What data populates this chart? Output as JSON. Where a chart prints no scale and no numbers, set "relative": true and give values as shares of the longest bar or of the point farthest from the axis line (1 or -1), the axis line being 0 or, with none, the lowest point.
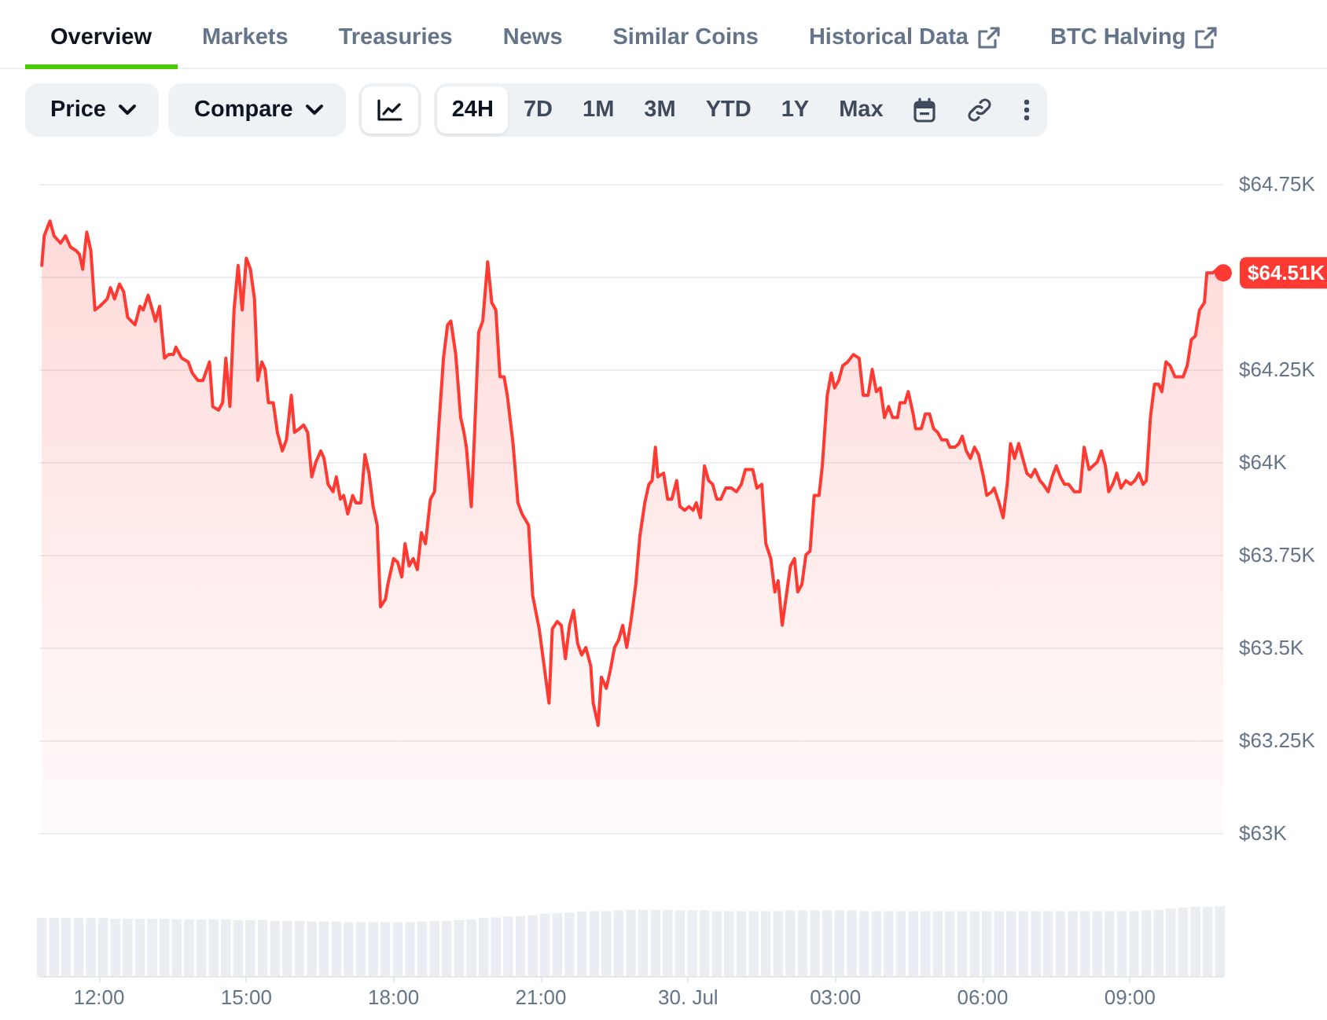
{
  "chart_data": [
    {
      "type": "area",
      "color": "#ff3a33",
      "xlim": [
        "--07-29T10:47",
        "--07-30T10:54"
      ],
      "ylim": [
        63,
        64.75
      ],
      "yticks": [
        {
          "value": 63,
          "label": "$63K"
        },
        {
          "value": 63.25,
          "label": "$63.25K"
        },
        {
          "value": 63.5,
          "label": "$63.5K"
        },
        {
          "value": 63.75,
          "label": "$63.75K"
        },
        {
          "value": 64,
          "label": "$64K"
        },
        {
          "value": 64.25,
          "label": "$64.25K"
        },
        {
          "value": 64.5,
          "label": null
        },
        {
          "value": 64.75,
          "label": "$64.75K"
        }
      ],
      "grid": "y",
      "tick_labels": "y",
      "annotations": [
        "Overview",
        "Markets",
        "Treasuries",
        "News",
        "Similar Coins",
        "Historical Data",
        "BTC Halving",
        "Price",
        "Compare",
        "24H",
        "7D",
        "1M",
        "3M",
        "YTD",
        "1Y",
        "Max",
        {
          "text": "$64.51K",
          "x": "--07-30T10:54",
          "y": 64.51
        }
      ],
      "x": [
        "--07-29T10:50",
        "--07-29T10:53",
        "--07-29T11:00",
        "--07-29T11:05",
        "--07-29T11:13",
        "--07-29T11:19",
        "--07-29T11:25",
        "--07-29T11:32",
        "--07-29T11:36",
        "--07-29T11:40",
        "--07-29T11:45",
        "--07-29T11:50",
        "--07-29T11:55",
        "--07-29T12:01",
        "--07-29T12:10",
        "--07-29T12:14",
        "--07-29T12:19",
        "--07-29T12:25",
        "--07-29T12:30",
        "--07-29T12:35",
        "--07-29T12:44",
        "--07-29T12:50",
        "--07-29T12:54",
        "--07-29T13:00",
        "--07-29T13:09",
        "--07-29T13:14",
        "--07-29T13:20",
        "--07-29T13:25",
        "--07-29T13:31",
        "--07-29T13:34",
        "--07-29T13:41",
        "--07-29T13:49",
        "--07-29T13:54",
        "--07-29T14:01",
        "--07-29T14:07",
        "--07-29T14:15",
        "--07-29T14:19",
        "--07-29T14:26",
        "--07-29T14:31",
        "--07-29T14:35",
        "--07-29T14:40",
        "--07-29T14:45",
        "--07-29T14:50",
        "--07-29T14:55",
        "--07-29T15:00",
        "--07-29T15:05",
        "--07-29T15:10",
        "--07-29T15:14",
        "--07-29T15:19",
        "--07-29T15:23",
        "--07-29T15:27",
        "--07-29T15:33",
        "--07-29T15:38",
        "--07-29T15:44",
        "--07-29T15:49",
        "--07-29T15:55",
        "--07-29T15:59",
        "--07-29T16:05",
        "--07-29T16:10",
        "--07-29T16:15",
        "--07-29T16:20",
        "--07-29T16:25",
        "--07-29T16:31",
        "--07-29T16:35",
        "--07-29T16:40",
        "--07-29T16:46",
        "--07-29T16:50",
        "--07-29T16:55",
        "--07-29T16:59",
        "--07-29T17:04",
        "--07-29T17:10",
        "--07-29T17:14",
        "--07-29T17:20",
        "--07-29T17:25",
        "--07-29T17:30",
        "--07-29T17:35",
        "--07-29T17:40",
        "--07-29T17:44",
        "--07-29T17:50",
        "--07-29T17:53",
        "--07-29T18:00",
        "--07-29T18:05",
        "--07-29T18:10",
        "--07-29T18:14",
        "--07-29T18:19",
        "--07-29T18:24",
        "--07-29T18:29",
        "--07-29T18:34",
        "--07-29T18:39",
        "--07-29T18:45",
        "--07-29T18:50",
        "--07-29T18:56",
        "--07-29T19:01",
        "--07-29T19:06",
        "--07-29T19:10",
        "--07-29T19:16",
        "--07-29T19:22",
        "--07-29T19:26",
        "--07-29T19:29",
        "--07-29T19:35",
        "--07-29T19:39",
        "--07-29T19:44",
        "--07-29T19:49",
        "--07-29T19:55",
        "--07-29T20:00",
        "--07-29T20:05",
        "--07-29T20:10",
        "--07-29T20:15",
        "--07-29T20:19",
        "--07-29T20:26",
        "--07-29T20:32",
        "--07-29T20:37",
        "--07-29T20:45",
        "--07-29T20:50",
        "--07-29T20:58",
        "--07-29T21:04",
        "--07-29T21:10",
        "--07-29T21:14",
        "--07-29T21:20",
        "--07-29T21:25",
        "--07-29T21:30",
        "--07-29T21:35",
        "--07-29T21:40",
        "--07-29T21:45",
        "--07-29T21:50",
        "--07-29T21:55",
        "--07-29T22:01",
        "--07-29T22:04",
        "--07-29T22:10",
        "--07-29T22:14",
        "--07-29T22:20",
        "--07-29T22:25",
        "--07-29T22:30",
        "--07-29T22:35",
        "--07-29T22:40",
        "--07-29T22:45",
        "--07-29T22:50",
        "--07-29T22:56",
        "--07-29T23:01",
        "--07-29T23:07",
        "--07-29T23:12",
        "--07-29T23:16",
        "--07-29T23:20",
        "--07-29T23:23",
        "--07-29T23:30",
        "--07-29T23:35",
        "--07-29T23:40",
        "--07-29T23:46",
        "--07-29T23:50",
        "--07-29T23:56",
        "--07-30T00:01",
        "--07-30T00:06",
        "--07-30T00:10",
        "--07-30T00:15",
        "--07-30T00:20",
        "--07-30T00:25",
        "--07-30T00:30",
        "--07-30T00:35",
        "--07-30T00:40",
        "--07-30T00:46",
        "--07-30T00:53",
        "--07-30T00:59",
        "--07-30T01:05",
        "--07-30T01:10",
        "--07-30T01:19",
        "--07-30T01:24",
        "--07-30T01:30",
        "--07-30T01:35",
        "--07-30T01:41",
        "--07-30T01:46",
        "--07-30T01:50",
        "--07-30T01:55",
        "--07-30T02:00",
        "--07-30T02:05",
        "--07-30T02:10",
        "--07-30T02:14",
        "--07-30T02:19",
        "--07-30T02:24",
        "--07-30T02:29",
        "--07-30T02:34",
        "--07-30T02:40",
        "--07-30T02:44",
        "--07-30T02:50",
        "--07-30T02:55",
        "--07-30T02:59",
        "--07-30T03:04",
        "--07-30T03:09",
        "--07-30T03:15",
        "--07-30T03:22",
        "--07-30T03:29",
        "--07-30T03:34",
        "--07-30T03:40",
        "--07-30T03:45",
        "--07-30T03:50",
        "--07-30T03:55",
        "--07-30T04:00",
        "--07-30T04:05",
        "--07-30T04:10",
        "--07-30T04:16",
        "--07-30T04:19",
        "--07-30T04:25",
        "--07-30T04:29",
        "--07-30T04:35",
        "--07-30T04:38",
        "--07-30T04:45",
        "--07-30T04:50",
        "--07-30T04:55",
        "--07-30T05:00",
        "--07-30T05:05",
        "--07-30T05:10",
        "--07-30T05:16",
        "--07-30T05:20",
        "--07-30T05:26",
        "--07-30T05:31",
        "--07-30T05:35",
        "--07-30T05:40",
        "--07-30T05:45",
        "--07-30T05:50",
        "--07-30T05:55",
        "--07-30T06:01",
        "--07-30T06:05",
        "--07-30T06:11",
        "--07-30T06:14",
        "--07-30T06:20",
        "--07-30T06:25",
        "--07-30T06:30",
        "--07-30T06:34",
        "--07-30T06:39",
        "--07-30T06:44",
        "--07-30T06:49",
        "--07-30T06:54",
        "--07-30T06:59",
        "--07-30T07:04",
        "--07-30T07:10",
        "--07-30T07:14",
        "--07-30T07:20",
        "--07-30T07:25",
        "--07-30T07:30",
        "--07-30T07:35",
        "--07-30T07:40",
        "--07-30T07:45",
        "--07-30T07:52",
        "--07-30T07:59",
        "--07-30T08:04",
        "--07-30T08:10",
        "--07-30T08:15",
        "--07-30T08:20",
        "--07-30T08:25",
        "--07-30T08:30",
        "--07-30T08:34",
        "--07-30T08:39",
        "--07-30T08:44",
        "--07-30T08:49",
        "--07-30T08:55",
        "--07-30T09:01",
        "--07-30T09:06",
        "--07-30T09:11",
        "--07-30T09:16",
        "--07-30T09:20",
        "--07-30T09:25",
        "--07-30T09:30",
        "--07-30T09:35",
        "--07-30T09:39",
        "--07-30T09:44",
        "--07-30T09:49",
        "--07-30T09:55",
        "--07-30T10:05",
        "--07-30T10:10",
        "--07-30T10:15",
        "--07-30T10:20",
        "--07-30T10:25",
        "--07-30T10:31",
        "--07-30T10:34",
        "--07-30T10:41",
        "--07-30T10:47",
        "--07-30T10:54"
      ],
      "values": [
        64.53,
        64.61,
        64.65,
        64.61,
        64.59,
        64.61,
        64.58,
        64.57,
        64.56,
        64.52,
        64.62,
        64.57,
        64.41,
        64.42,
        64.44,
        64.47,
        64.44,
        64.48,
        64.46,
        64.39,
        64.37,
        64.42,
        64.41,
        64.45,
        64.38,
        64.42,
        64.28,
        64.29,
        64.29,
        64.31,
        64.28,
        64.27,
        64.24,
        64.22,
        64.22,
        64.27,
        64.15,
        64.14,
        64.16,
        64.28,
        64.15,
        64.41,
        64.53,
        64.41,
        64.55,
        64.52,
        64.44,
        64.22,
        64.27,
        64.25,
        64.16,
        64.16,
        64.08,
        64.03,
        64.06,
        64.18,
        64.08,
        64.09,
        64.1,
        64.08,
        63.96,
        64.0,
        64.03,
        64.01,
        63.94,
        63.92,
        63.96,
        63.9,
        63.91,
        63.86,
        63.91,
        63.89,
        63.89,
        64.02,
        63.97,
        63.88,
        63.83,
        63.61,
        63.63,
        63.67,
        63.74,
        63.73,
        63.69,
        63.78,
        63.72,
        63.74,
        63.71,
        63.81,
        63.78,
        63.9,
        63.92,
        64.12,
        64.28,
        64.37,
        64.38,
        64.29,
        64.12,
        64.08,
        64.04,
        63.88,
        64.08,
        64.35,
        64.38,
        64.54,
        64.43,
        64.41,
        64.23,
        64.23,
        64.18,
        64.05,
        63.89,
        63.86,
        63.83,
        63.64,
        63.55,
        63.45,
        63.35,
        63.55,
        63.57,
        63.56,
        63.47,
        63.56,
        63.6,
        63.51,
        63.48,
        63.5,
        63.45,
        63.35,
        63.29,
        63.42,
        63.39,
        63.44,
        63.5,
        63.52,
        63.56,
        63.5,
        63.57,
        63.67,
        63.8,
        63.89,
        63.94,
        63.95,
        64.04,
        63.96,
        63.97,
        63.9,
        63.9,
        63.95,
        63.88,
        63.87,
        63.88,
        63.87,
        63.89,
        63.85,
        63.99,
        63.95,
        63.94,
        63.9,
        63.9,
        63.93,
        63.93,
        63.92,
        63.94,
        63.98,
        63.98,
        63.93,
        63.94,
        63.78,
        63.74,
        63.65,
        63.68,
        63.56,
        63.64,
        63.72,
        63.74,
        63.65,
        63.67,
        63.75,
        63.76,
        63.91,
        63.91,
        63.99,
        64.18,
        64.24,
        64.2,
        64.22,
        64.26,
        64.27,
        64.29,
        64.28,
        64.18,
        64.18,
        64.25,
        64.19,
        64.2,
        64.12,
        64.15,
        64.12,
        64.12,
        64.16,
        64.16,
        64.19,
        64.13,
        64.09,
        64.09,
        64.13,
        64.13,
        64.09,
        64.08,
        64.06,
        64.06,
        64.04,
        64.04,
        64.05,
        64.07,
        64.03,
        64.01,
        64.04,
        64.02,
        63.96,
        63.91,
        63.92,
        63.93,
        63.89,
        63.85,
        63.94,
        64.05,
        64.01,
        64.05,
        64.01,
        63.97,
        63.96,
        63.98,
        63.95,
        63.94,
        63.92,
        63.96,
        63.99,
        63.96,
        63.94,
        63.94,
        63.92,
        63.92,
        64.04,
        63.98,
        63.99,
        64.0,
        64.03,
        63.99,
        63.92,
        63.94,
        63.97,
        63.93,
        63.95,
        63.94,
        63.95,
        63.97,
        63.94,
        63.95,
        64.12,
        64.21,
        64.21,
        64.19,
        64.27,
        64.26,
        64.23,
        64.23,
        64.26,
        64.33,
        64.34,
        64.41,
        64.43,
        64.51,
        64.51,
        64.52,
        64.51
      ]
    },
    {
      "type": "bar",
      "relative": true,
      "color": "#eaedf1",
      "xlim": [
        "--07-29T10:47",
        "--07-30T10:54"
      ],
      "tick_labels": "x",
      "xticks": [
        {
          "value": "--07-29T12:00",
          "label": "12:00"
        },
        {
          "value": "--07-29T15:00",
          "label": "15:00"
        },
        {
          "value": "--07-29T18:00",
          "label": "18:00"
        },
        {
          "value": "--07-29T21:00",
          "label": "21:00"
        },
        {
          "value": "--07-30T00:00",
          "label": "30. Jul"
        },
        {
          "value": "--07-30T03:00",
          "label": "03:00"
        },
        {
          "value": "--07-30T06:00",
          "label": "06:00"
        },
        {
          "value": "--07-30T09:00",
          "label": "09:00"
        }
      ],
      "x": [
        "--07-29T10:50",
        "--07-29T11:05",
        "--07-29T11:20",
        "--07-29T11:35",
        "--07-29T11:50",
        "--07-29T12:05",
        "--07-29T12:20",
        "--07-29T12:35",
        "--07-29T12:50",
        "--07-29T13:05",
        "--07-29T13:20",
        "--07-29T13:35",
        "--07-29T13:50",
        "--07-29T14:05",
        "--07-29T14:20",
        "--07-29T14:35",
        "--07-29T14:50",
        "--07-29T15:05",
        "--07-29T15:20",
        "--07-29T15:35",
        "--07-29T15:50",
        "--07-29T16:05",
        "--07-29T16:20",
        "--07-29T16:35",
        "--07-29T16:50",
        "--07-29T17:05",
        "--07-29T17:20",
        "--07-29T17:35",
        "--07-29T17:50",
        "--07-29T18:05",
        "--07-29T18:20",
        "--07-29T18:35",
        "--07-29T18:50",
        "--07-29T19:05",
        "--07-29T19:20",
        "--07-29T19:35",
        "--07-29T19:50",
        "--07-29T20:05",
        "--07-29T20:20",
        "--07-29T20:35",
        "--07-29T20:50",
        "--07-29T21:05",
        "--07-29T21:20",
        "--07-29T21:35",
        "--07-29T21:50",
        "--07-29T22:05",
        "--07-29T22:20",
        "--07-29T22:35",
        "--07-29T22:50",
        "--07-29T23:05",
        "--07-29T23:20",
        "--07-29T23:35",
        "--07-29T23:50",
        "--07-30T00:05",
        "--07-30T00:20",
        "--07-30T00:35",
        "--07-30T00:50",
        "--07-30T01:05",
        "--07-30T01:20",
        "--07-30T01:35",
        "--07-30T01:50",
        "--07-30T02:05",
        "--07-30T02:20",
        "--07-30T02:35",
        "--07-30T02:50",
        "--07-30T03:05",
        "--07-30T03:20",
        "--07-30T03:35",
        "--07-30T03:50",
        "--07-30T04:05",
        "--07-30T04:20",
        "--07-30T04:35",
        "--07-30T04:50",
        "--07-30T05:05",
        "--07-30T05:20",
        "--07-30T05:35",
        "--07-30T05:50",
        "--07-30T06:05",
        "--07-30T06:20",
        "--07-30T06:35",
        "--07-30T06:50",
        "--07-30T07:05",
        "--07-30T07:20",
        "--07-30T07:35",
        "--07-30T07:50",
        "--07-30T08:05",
        "--07-30T08:20",
        "--07-30T08:35",
        "--07-30T08:50",
        "--07-30T09:05",
        "--07-30T09:20",
        "--07-30T09:35",
        "--07-30T09:50",
        "--07-30T10:05",
        "--07-30T10:20",
        "--07-30T10:35",
        "--07-30T10:50"
      ],
      "values": [
        0.83,
        0.83,
        0.83,
        0.83,
        0.83,
        0.83,
        0.82,
        0.82,
        0.82,
        0.82,
        0.82,
        0.81,
        0.81,
        0.81,
        0.81,
        0.81,
        0.8,
        0.8,
        0.8,
        0.79,
        0.79,
        0.79,
        0.78,
        0.78,
        0.78,
        0.77,
        0.77,
        0.77,
        0.77,
        0.77,
        0.77,
        0.78,
        0.79,
        0.79,
        0.8,
        0.81,
        0.83,
        0.84,
        0.85,
        0.86,
        0.87,
        0.89,
        0.9,
        0.91,
        0.92,
        0.93,
        0.93,
        0.94,
        0.95,
        0.95,
        0.95,
        0.95,
        0.94,
        0.94,
        0.94,
        0.93,
        0.93,
        0.93,
        0.93,
        0.93,
        0.93,
        0.94,
        0.94,
        0.94,
        0.94,
        0.94,
        0.94,
        0.93,
        0.93,
        0.93,
        0.93,
        0.93,
        0.93,
        0.93,
        0.93,
        0.93,
        0.93,
        0.93,
        0.93,
        0.93,
        0.93,
        0.93,
        0.93,
        0.93,
        0.93,
        0.93,
        0.93,
        0.93,
        0.93,
        0.93,
        0.94,
        0.95,
        0.97,
        0.98,
        0.99,
        0.99,
        1
      ]
    }
  ]
}
